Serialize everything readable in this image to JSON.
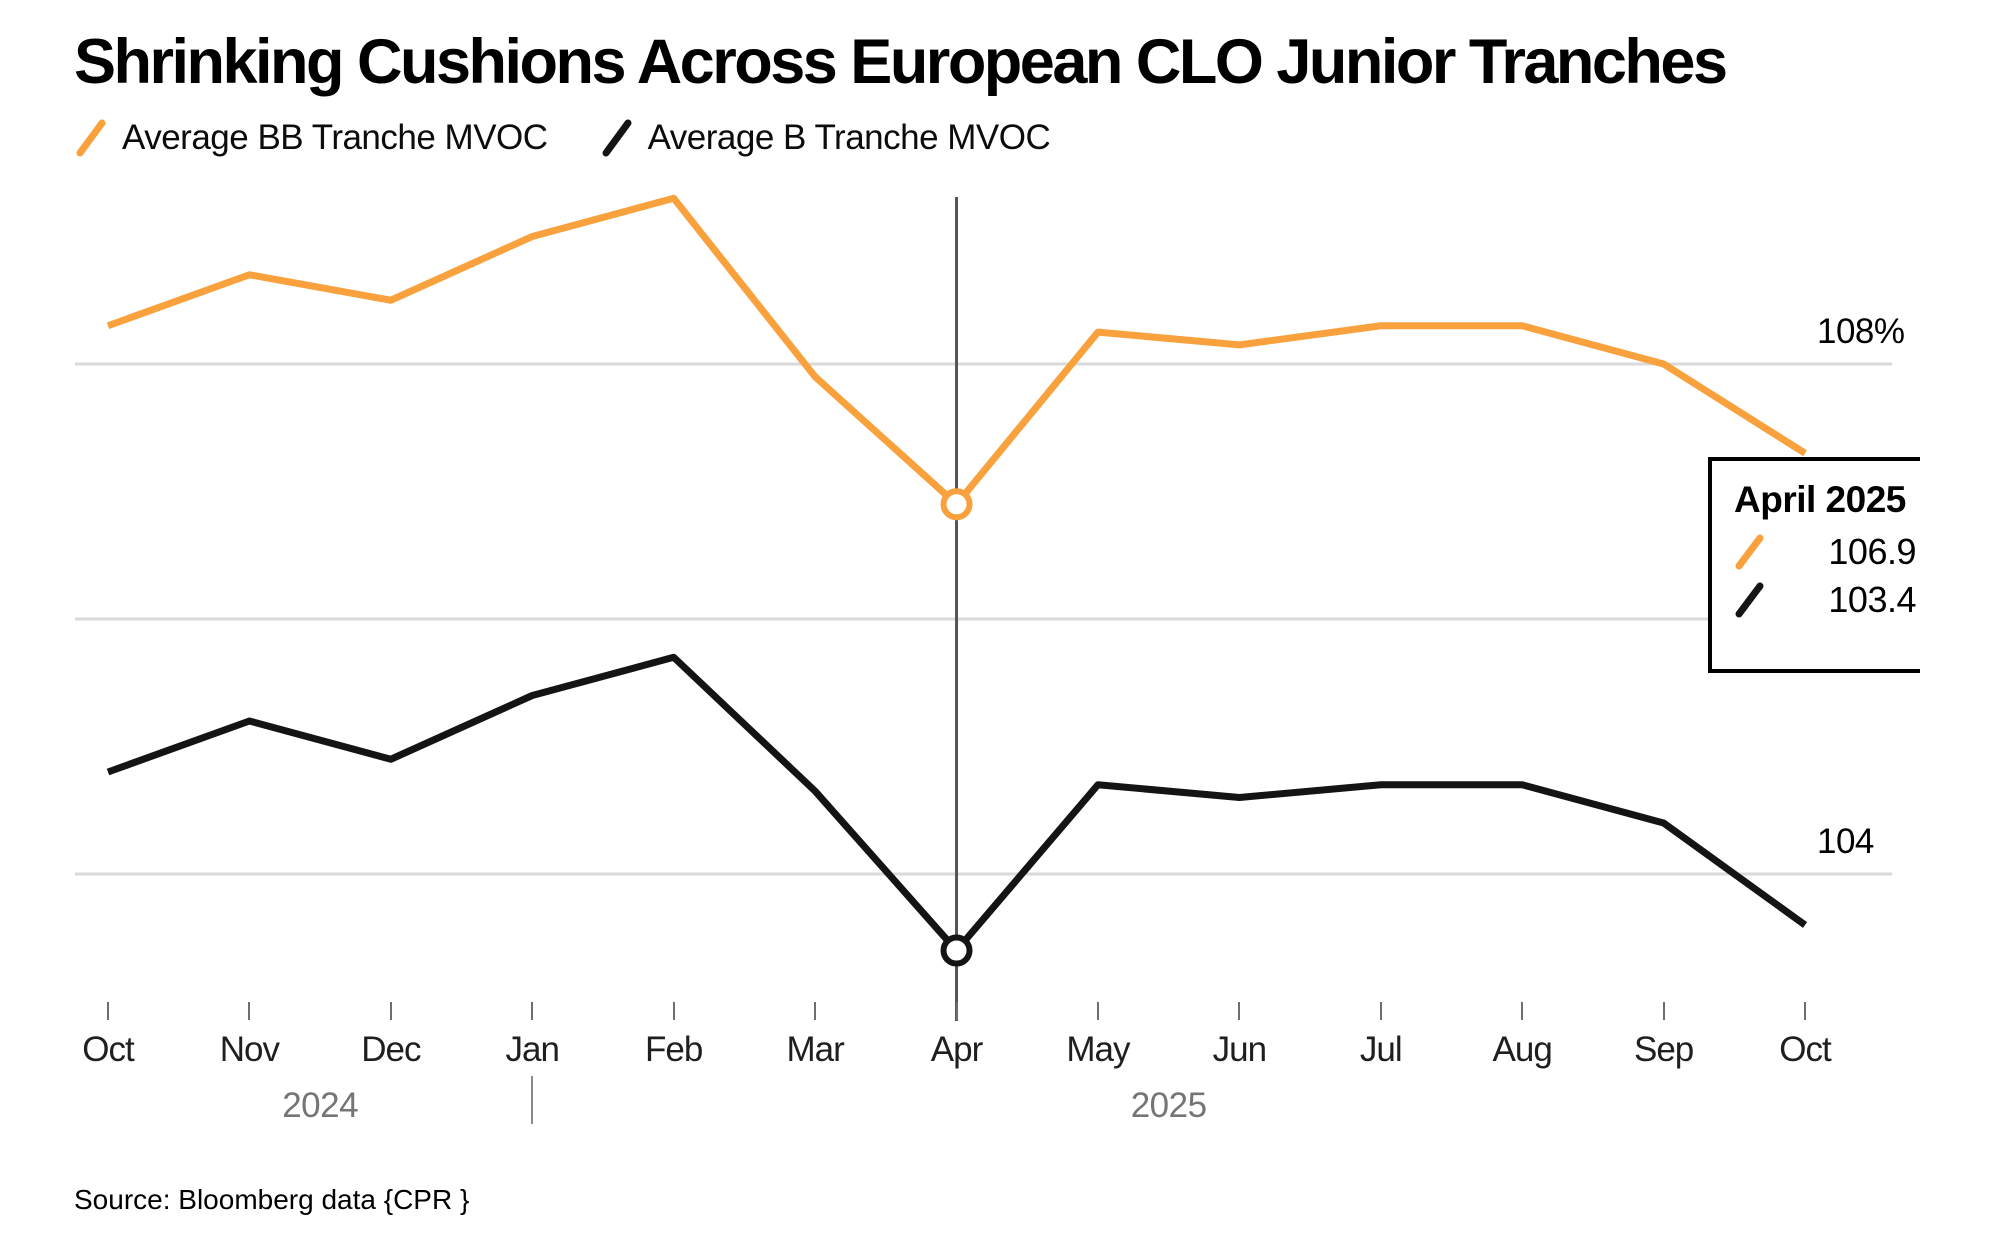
{
  "header": {
    "title": "Shrinking Cushions Across European CLO Junior Tranches",
    "legend": [
      {
        "label": "Average BB Tranche MVOC",
        "color": "#F9A13D"
      },
      {
        "label": "Average B Tranche MVOC",
        "color": "#141414"
      }
    ]
  },
  "tooltip": {
    "title": "April 2025",
    "rows": [
      {
        "series": "Average BB Tranche MVOC",
        "value": "106.9",
        "color": "#F9A13D"
      },
      {
        "series": "Average B Tranche MVOC",
        "value": "103.4",
        "color": "#141414"
      }
    ]
  },
  "axis": {
    "y_labels": [
      {
        "text": "108%",
        "value": 108
      },
      {
        "text": "104",
        "value": 104
      }
    ],
    "years": [
      {
        "label": "2024",
        "between": [
          1,
          2
        ]
      },
      {
        "label": "2025",
        "between": [
          7,
          8
        ]
      }
    ],
    "divider_month_index": 3
  },
  "source": "Source: Bloomberg data {CPR }",
  "colors": {
    "grid": "#DADADA",
    "crosshair": "#555555",
    "tick": "#6E6E6E",
    "month_label": "#1F1F1F",
    "year_label": "#757575",
    "background": "#FFFFFF"
  },
  "chart_data": {
    "type": "line",
    "categories": [
      "Oct",
      "Nov",
      "Dec",
      "Jan",
      "Feb",
      "Mar",
      "Apr",
      "May",
      "Jun",
      "Jul",
      "Aug",
      "Sep",
      "Oct"
    ],
    "x_range": "Oct 2024 - Oct 2025",
    "ylim": [
      102.9,
      109.8
    ],
    "gridlines": [
      108,
      106,
      104
    ],
    "grid": true,
    "legend_position": "top-left",
    "series": [
      {
        "name": "Average BB Tranche MVOC",
        "color": "#F9A13D",
        "values": [
          108.3,
          108.7,
          108.5,
          109.0,
          109.3,
          107.9,
          106.9,
          108.25,
          108.15,
          108.3,
          108.3,
          108.0,
          107.3
        ]
      },
      {
        "name": "Average B Tranche MVOC",
        "color": "#141414",
        "values": [
          104.8,
          105.2,
          104.9,
          105.4,
          105.7,
          104.65,
          103.4,
          104.7,
          104.6,
          104.7,
          104.7,
          104.4,
          103.6
        ]
      }
    ],
    "highlight": {
      "index": 6,
      "label": "April 2025",
      "bb_value": 106.9,
      "b_value": 103.4
    }
  }
}
